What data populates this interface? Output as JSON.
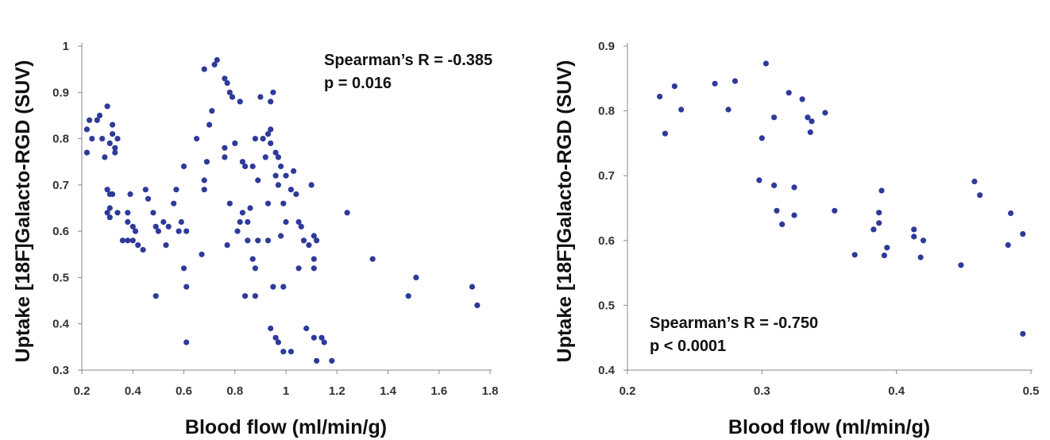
{
  "chart_data": [
    {
      "type": "scatter",
      "xlabel": "Blood flow (ml/min/g)",
      "ylabel": "Uptake [18F]Galacto-RGD (SUV)",
      "xlim": [
        0.2,
        1.8
      ],
      "ylim": [
        0.3,
        1.0
      ],
      "xticks": [
        "0.2",
        "0.4",
        "0.6",
        "0.8",
        "1",
        "1.2",
        "1.4",
        "1.6",
        "1.8"
      ],
      "yticks": [
        "0.3",
        "0.4",
        "0.5",
        "0.6",
        "0.7",
        "0.8",
        "0.9",
        "1"
      ],
      "annotation": [
        "Spearman’s R = -0.385",
        "p = 0.016"
      ],
      "marker_color": "#2E3A9A",
      "grid": false,
      "points": [
        [
          0.22,
          0.82
        ],
        [
          0.23,
          0.84
        ],
        [
          0.24,
          0.8
        ],
        [
          0.26,
          0.84
        ],
        [
          0.27,
          0.85
        ],
        [
          0.28,
          0.8
        ],
        [
          0.29,
          0.76
        ],
        [
          0.3,
          0.87
        ],
        [
          0.31,
          0.79
        ],
        [
          0.32,
          0.83
        ],
        [
          0.33,
          0.78
        ],
        [
          0.34,
          0.8
        ],
        [
          0.33,
          0.77
        ],
        [
          0.22,
          0.77
        ],
        [
          0.32,
          0.81
        ],
        [
          0.3,
          0.69
        ],
        [
          0.31,
          0.68
        ],
        [
          0.32,
          0.68
        ],
        [
          0.31,
          0.65
        ],
        [
          0.3,
          0.64
        ],
        [
          0.34,
          0.64
        ],
        [
          0.31,
          0.63
        ],
        [
          0.36,
          0.58
        ],
        [
          0.38,
          0.58
        ],
        [
          0.38,
          0.62
        ],
        [
          0.39,
          0.68
        ],
        [
          0.4,
          0.61
        ],
        [
          0.41,
          0.6
        ],
        [
          0.4,
          0.58
        ],
        [
          0.42,
          0.57
        ],
        [
          0.38,
          0.64
        ],
        [
          0.44,
          0.56
        ],
        [
          0.45,
          0.69
        ],
        [
          0.46,
          0.67
        ],
        [
          0.48,
          0.64
        ],
        [
          0.49,
          0.61
        ],
        [
          0.5,
          0.6
        ],
        [
          0.52,
          0.62
        ],
        [
          0.53,
          0.57
        ],
        [
          0.54,
          0.61
        ],
        [
          0.56,
          0.66
        ],
        [
          0.57,
          0.69
        ],
        [
          0.58,
          0.6
        ],
        [
          0.59,
          0.62
        ],
        [
          0.6,
          0.74
        ],
        [
          0.61,
          0.6
        ],
        [
          0.6,
          0.52
        ],
        [
          0.61,
          0.48
        ],
        [
          0.49,
          0.46
        ],
        [
          0.61,
          0.36
        ],
        [
          0.65,
          0.8
        ],
        [
          0.67,
          0.55
        ],
        [
          0.68,
          0.71
        ],
        [
          0.69,
          0.75
        ],
        [
          0.68,
          0.69
        ],
        [
          0.7,
          0.83
        ],
        [
          0.71,
          0.86
        ],
        [
          0.72,
          0.96
        ],
        [
          0.73,
          0.97
        ],
        [
          0.68,
          0.95
        ],
        [
          0.76,
          0.93
        ],
        [
          0.77,
          0.92
        ],
        [
          0.78,
          0.9
        ],
        [
          0.79,
          0.89
        ],
        [
          0.8,
          0.79
        ],
        [
          0.82,
          0.88
        ],
        [
          0.76,
          0.78
        ],
        [
          0.76,
          0.76
        ],
        [
          0.78,
          0.66
        ],
        [
          0.77,
          0.57
        ],
        [
          0.83,
          0.75
        ],
        [
          0.84,
          0.74
        ],
        [
          0.85,
          0.62
        ],
        [
          0.86,
          0.65
        ],
        [
          0.87,
          0.74
        ],
        [
          0.88,
          0.8
        ],
        [
          0.89,
          0.71
        ],
        [
          0.89,
          0.58
        ],
        [
          0.9,
          0.89
        ],
        [
          0.91,
          0.8
        ],
        [
          0.92,
          0.76
        ],
        [
          0.93,
          0.81
        ],
        [
          0.94,
          0.82
        ],
        [
          0.94,
          0.88
        ],
        [
          0.95,
          0.9
        ],
        [
          0.94,
          0.79
        ],
        [
          0.96,
          0.77
        ],
        [
          0.97,
          0.76
        ],
        [
          0.96,
          0.72
        ],
        [
          0.97,
          0.7
        ],
        [
          0.98,
          0.74
        ],
        [
          0.99,
          0.66
        ],
        [
          1.0,
          0.72
        ],
        [
          1.02,
          0.69
        ],
        [
          1.03,
          0.73
        ],
        [
          1.04,
          0.68
        ],
        [
          1.0,
          0.62
        ],
        [
          1.05,
          0.62
        ],
        [
          1.06,
          0.61
        ],
        [
          1.07,
          0.58
        ],
        [
          1.09,
          0.57
        ],
        [
          1.1,
          0.7
        ],
        [
          1.11,
          0.59
        ],
        [
          1.12,
          0.58
        ],
        [
          1.11,
          0.54
        ],
        [
          1.11,
          0.52
        ],
        [
          1.05,
          0.52
        ],
        [
          0.95,
          0.48
        ],
        [
          0.99,
          0.48
        ],
        [
          0.98,
          0.59
        ],
        [
          0.93,
          0.58
        ],
        [
          0.93,
          0.66
        ],
        [
          0.88,
          0.52
        ],
        [
          0.87,
          0.54
        ],
        [
          0.88,
          0.46
        ],
        [
          0.84,
          0.46
        ],
        [
          0.94,
          0.39
        ],
        [
          0.96,
          0.37
        ],
        [
          0.97,
          0.36
        ],
        [
          0.99,
          0.34
        ],
        [
          1.02,
          0.34
        ],
        [
          1.08,
          0.39
        ],
        [
          1.11,
          0.37
        ],
        [
          1.12,
          0.32
        ],
        [
          1.14,
          0.37
        ],
        [
          1.15,
          0.36
        ],
        [
          1.18,
          0.32
        ],
        [
          1.24,
          0.64
        ],
        [
          1.34,
          0.54
        ],
        [
          1.48,
          0.46
        ],
        [
          1.51,
          0.5
        ],
        [
          1.73,
          0.48
        ],
        [
          1.75,
          0.44
        ],
        [
          0.82,
          0.62
        ],
        [
          0.85,
          0.58
        ],
        [
          0.81,
          0.6
        ],
        [
          0.83,
          0.64
        ]
      ]
    },
    {
      "type": "scatter",
      "xlabel": "Blood flow (ml/min/g)",
      "ylabel": "Uptake [18F]Galacto-RGD (SUV)",
      "xlim": [
        0.2,
        0.5
      ],
      "ylim": [
        0.4,
        0.9
      ],
      "xticks": [
        "0.2",
        "0.3",
        "0.4",
        "0.5"
      ],
      "yticks": [
        "0.4",
        "0.5",
        "0.6",
        "0.7",
        "0.8",
        "0.9"
      ],
      "annotation": [
        "Spearman’s R = -0.750",
        "p < 0.0001"
      ],
      "marker_color": "#2E3A9A",
      "grid": false,
      "points": [
        [
          0.224,
          0.822
        ],
        [
          0.228,
          0.765
        ],
        [
          0.235,
          0.838
        ],
        [
          0.24,
          0.802
        ],
        [
          0.265,
          0.842
        ],
        [
          0.275,
          0.802
        ],
        [
          0.28,
          0.846
        ],
        [
          0.298,
          0.693
        ],
        [
          0.3,
          0.758
        ],
        [
          0.303,
          0.873
        ],
        [
          0.309,
          0.79
        ],
        [
          0.309,
          0.685
        ],
        [
          0.311,
          0.646
        ],
        [
          0.315,
          0.625
        ],
        [
          0.32,
          0.828
        ],
        [
          0.324,
          0.682
        ],
        [
          0.324,
          0.639
        ],
        [
          0.33,
          0.818
        ],
        [
          0.334,
          0.79
        ],
        [
          0.336,
          0.767
        ],
        [
          0.337,
          0.784
        ],
        [
          0.347,
          0.797
        ],
        [
          0.354,
          0.646
        ],
        [
          0.369,
          0.578
        ],
        [
          0.383,
          0.617
        ],
        [
          0.387,
          0.643
        ],
        [
          0.387,
          0.627
        ],
        [
          0.389,
          0.677
        ],
        [
          0.391,
          0.577
        ],
        [
          0.393,
          0.589
        ],
        [
          0.413,
          0.617
        ],
        [
          0.413,
          0.606
        ],
        [
          0.418,
          0.574
        ],
        [
          0.42,
          0.6
        ],
        [
          0.448,
          0.562
        ],
        [
          0.458,
          0.691
        ],
        [
          0.462,
          0.67
        ],
        [
          0.483,
          0.593
        ],
        [
          0.485,
          0.642
        ],
        [
          0.494,
          0.61
        ],
        [
          0.494,
          0.456
        ]
      ]
    }
  ]
}
